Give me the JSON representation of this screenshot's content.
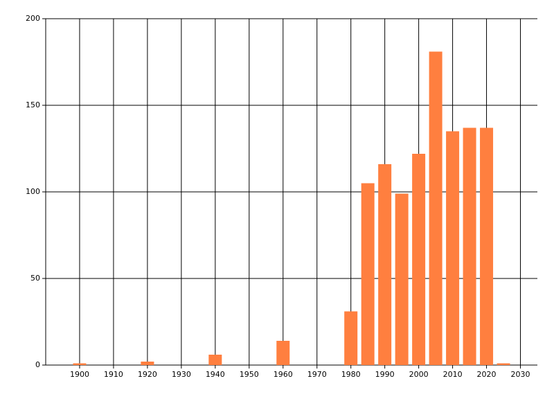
{
  "chart_data": {
    "type": "bar",
    "x": [
      1900,
      1920,
      1940,
      1960,
      1980,
      1985,
      1990,
      1995,
      2000,
      2005,
      2010,
      2015,
      2020,
      2025
    ],
    "values": [
      1,
      2,
      6,
      14,
      31,
      105,
      116,
      99,
      122,
      181,
      135,
      137,
      137,
      1
    ],
    "color": "#ff7f3f",
    "xlim": [
      1890,
      2035
    ],
    "xticks": [
      1900,
      1910,
      1920,
      1930,
      1940,
      1950,
      1960,
      1970,
      1980,
      1990,
      2000,
      2010,
      2020,
      2030
    ],
    "ylim": [
      0,
      200
    ],
    "yticks": [
      0,
      50,
      100,
      150,
      200
    ],
    "grid": true
  }
}
